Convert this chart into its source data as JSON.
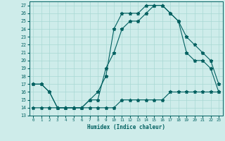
{
  "xlabel": "Humidex (Indice chaleur)",
  "bg_color": "#ceecea",
  "grid_color": "#a8d8d4",
  "line_color": "#006060",
  "xlim": [
    -0.5,
    23.5
  ],
  "ylim": [
    13,
    27.5
  ],
  "xticks": [
    0,
    1,
    2,
    3,
    4,
    5,
    6,
    7,
    8,
    9,
    10,
    11,
    12,
    13,
    14,
    15,
    16,
    17,
    18,
    19,
    20,
    21,
    22,
    23
  ],
  "yticks": [
    13,
    14,
    15,
    16,
    17,
    18,
    19,
    20,
    21,
    22,
    23,
    24,
    25,
    26,
    27
  ],
  "line1_x": [
    0,
    1,
    2,
    3,
    4,
    5,
    6,
    7,
    8,
    9,
    10,
    11,
    12,
    13,
    14,
    15,
    16,
    17,
    18,
    19,
    20,
    21,
    22,
    23
  ],
  "line1_y": [
    17,
    17,
    16,
    14,
    14,
    14,
    14,
    15,
    16,
    18,
    24,
    26,
    26,
    26,
    27,
    27,
    27,
    26,
    25,
    23,
    22,
    21,
    20,
    17
  ],
  "line2_x": [
    0,
    1,
    2,
    3,
    4,
    5,
    6,
    7,
    8,
    9,
    10,
    11,
    12,
    13,
    14,
    15,
    16,
    17,
    18,
    19,
    20,
    21,
    22,
    23
  ],
  "line2_y": [
    17,
    17,
    16,
    14,
    14,
    14,
    14,
    15,
    15,
    19,
    21,
    24,
    25,
    25,
    26,
    27,
    27,
    26,
    25,
    21,
    20,
    20,
    19,
    16
  ],
  "line3_x": [
    0,
    1,
    2,
    3,
    4,
    5,
    6,
    7,
    8,
    9,
    10,
    11,
    12,
    13,
    14,
    15,
    16,
    17,
    18,
    19,
    20,
    21,
    22,
    23
  ],
  "line3_y": [
    14,
    14,
    14,
    14,
    14,
    14,
    14,
    14,
    14,
    14,
    14,
    15,
    15,
    15,
    15,
    15,
    15,
    16,
    16,
    16,
    16,
    16,
    16,
    16
  ],
  "linewidth": 0.8,
  "markersize": 3.5
}
